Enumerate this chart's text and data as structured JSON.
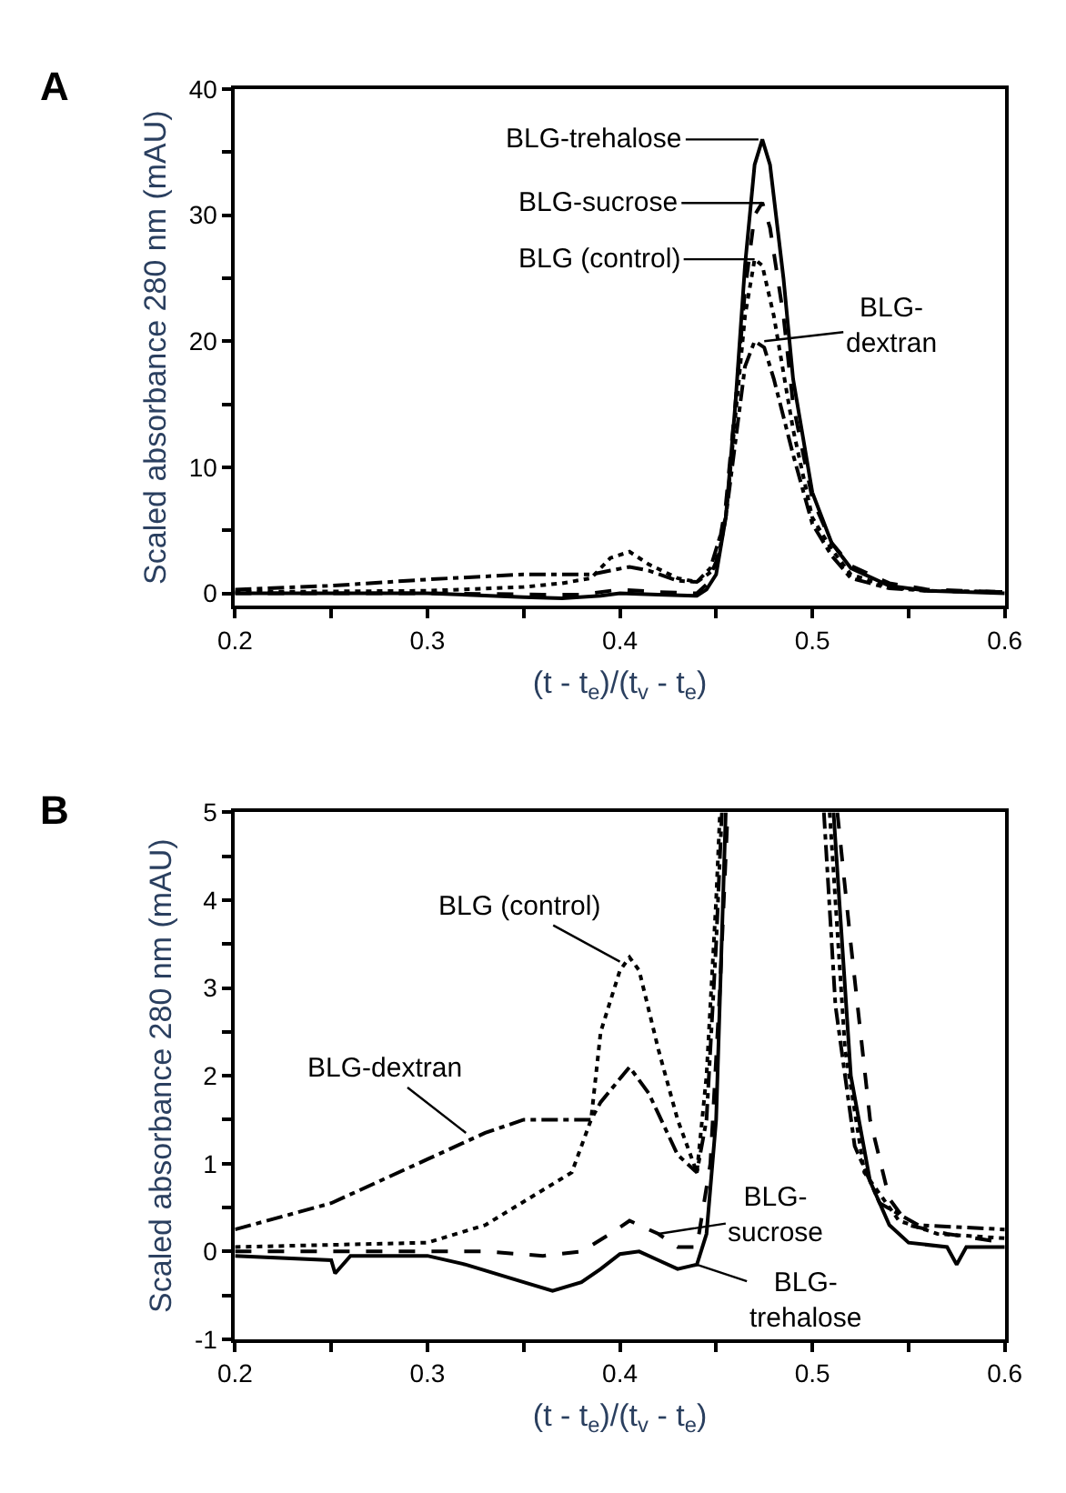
{
  "chart_data": [
    {
      "type": "line",
      "xlabel": "(t - t$_{e}$)/(t$_{v}$ - t$_{e}$)",
      "ylabel": "Scaled absorbance 280 nm (mAU)",
      "xlim": [
        0.2,
        0.6
      ],
      "xticks": [
        0.2,
        {
          "value": 0.25,
          "label": null
        },
        0.3,
        {
          "value": 0.35,
          "label": null
        },
        0.4,
        {
          "value": 0.45,
          "label": null
        },
        0.5,
        {
          "value": 0.55,
          "label": null
        },
        0.6
      ],
      "ylim": [
        -1,
        40
      ],
      "yticks": [
        0,
        {
          "value": 5,
          "label": null
        },
        10,
        {
          "value": 15,
          "label": null
        },
        20,
        {
          "value": 25,
          "label": null
        },
        30,
        {
          "value": 35,
          "label": null
        },
        40
      ],
      "series": [
        {
          "color": "#000000",
          "line_style": "solid",
          "x": [
            0.2,
            0.3,
            0.35,
            0.37,
            0.39,
            0.4,
            0.42,
            0.44,
            0.445,
            0.45,
            0.455,
            0.46,
            0.465,
            0.47,
            0.474,
            0.478,
            0.485,
            0.49,
            0.5,
            0.51,
            0.52,
            0.54,
            0.56,
            0.6
          ],
          "values": [
            0,
            0,
            -0.3,
            -0.4,
            -0.2,
            0,
            -0.1,
            -0.2,
            0.3,
            1.5,
            6,
            15,
            26,
            34,
            36,
            34,
            25,
            17,
            8,
            4,
            2,
            0.6,
            0.2,
            0
          ]
        },
        {
          "color": "#000000",
          "line_style": "dashed",
          "x": [
            0.2,
            0.3,
            0.36,
            0.38,
            0.4,
            0.42,
            0.44,
            0.445,
            0.45,
            0.455,
            0.46,
            0.465,
            0.47,
            0.474,
            0.478,
            0.485,
            0.49,
            0.5,
            0.51,
            0.52,
            0.54,
            0.56,
            0.6
          ],
          "values": [
            0,
            0,
            -0.1,
            -0.1,
            0.3,
            0.1,
            0,
            0.7,
            2.5,
            7,
            15,
            24,
            30,
            31,
            29,
            22,
            15,
            7.5,
            4,
            2.2,
            0.8,
            0.3,
            0.1
          ]
        },
        {
          "color": "#000000",
          "line_style": "dotted",
          "x": [
            0.2,
            0.3,
            0.35,
            0.37,
            0.385,
            0.395,
            0.405,
            0.415,
            0.43,
            0.44,
            0.45,
            0.455,
            0.46,
            0.465,
            0.47,
            0.474,
            0.48,
            0.49,
            0.5,
            0.51,
            0.52,
            0.54,
            0.56,
            0.6
          ],
          "values": [
            0.1,
            0.2,
            0.5,
            0.8,
            1.2,
            2.8,
            3.3,
            2.3,
            1.2,
            0.9,
            2,
            6,
            14,
            22,
            26.5,
            26,
            22,
            13,
            6,
            3.5,
            1.5,
            0.5,
            0.2,
            0.1
          ]
        },
        {
          "color": "#000000",
          "line_style": "dashdot",
          "x": [
            0.2,
            0.25,
            0.3,
            0.35,
            0.385,
            0.395,
            0.405,
            0.415,
            0.43,
            0.44,
            0.447,
            0.455,
            0.46,
            0.465,
            0.47,
            0.475,
            0.48,
            0.49,
            0.5,
            0.51,
            0.52,
            0.54,
            0.56,
            0.6
          ],
          "values": [
            0.3,
            0.6,
            1.1,
            1.5,
            1.5,
            1.8,
            2.1,
            1.8,
            1.0,
            0.9,
            2,
            6,
            12,
            18,
            20,
            19.5,
            17,
            11,
            5.5,
            3,
            1.2,
            0.4,
            0.2,
            0.1
          ]
        }
      ],
      "annotations": [
        "A",
        {
          "text": "BLG-trehalose",
          "x": 0.472,
          "y": 36
        },
        "BLG-sucrose",
        {
          "text": "BLG (control)",
          "x": 0.47,
          "y": 26.5
        },
        {
          "text": "BLG-\ndextran",
          "x": 0.475,
          "y": 20
        }
      ]
    },
    {
      "type": "line",
      "xlabel": "(t - t$_{e}$)/(t$_{v}$ - t$_{e}$)",
      "ylabel": "Scaled absorbance 280 nm (mAU)",
      "xlim": [
        0.2,
        0.6
      ],
      "xticks": [
        0.2,
        {
          "value": 0.25,
          "label": null
        },
        0.3,
        {
          "value": 0.35,
          "label": null
        },
        0.4,
        {
          "value": 0.45,
          "label": null
        },
        0.5,
        {
          "value": 0.55,
          "label": null
        },
        0.6
      ],
      "ylim": [
        -1,
        5
      ],
      "yticks": [
        -1,
        {
          "value": -0.5,
          "label": null
        },
        0,
        {
          "value": 0.5,
          "label": null
        },
        1,
        {
          "value": 1.5,
          "label": null
        },
        2,
        {
          "value": 2.5,
          "label": null
        },
        3,
        {
          "value": 3.5,
          "label": null
        },
        4,
        {
          "value": 4.5,
          "label": null
        },
        5
      ],
      "series": [
        {
          "color": "#000000",
          "line_style": "solid",
          "x": [
            0.2,
            0.25,
            0.252,
            0.26,
            0.3,
            0.32,
            0.35,
            0.365,
            0.38,
            0.39,
            0.4,
            0.41,
            0.42,
            0.43,
            0.44,
            0.445,
            0.45,
            0.455,
            0.48,
            0.511,
            0.52,
            0.53,
            0.54,
            0.55,
            0.57,
            0.575,
            0.58,
            0.6
          ],
          "values": [
            -0.05,
            -0.1,
            -0.25,
            -0.05,
            -0.05,
            -0.15,
            -0.35,
            -0.45,
            -0.35,
            -0.2,
            -0.03,
            0,
            -0.1,
            -0.2,
            -0.15,
            0.2,
            1.5,
            5,
            null,
            5,
            2,
            0.8,
            0.3,
            0.1,
            0.05,
            -0.15,
            0.05,
            0.05
          ]
        },
        {
          "color": "#000000",
          "line_style": "dashed",
          "x": [
            0.2,
            0.3,
            0.33,
            0.36,
            0.38,
            0.395,
            0.405,
            0.42,
            0.43,
            0.44,
            0.447,
            0.452,
            0.456,
            0.48,
            0.513,
            0.52,
            0.53,
            0.54,
            0.55,
            0.57,
            0.6
          ],
          "values": [
            0,
            0,
            0,
            -0.05,
            0,
            0.2,
            0.35,
            0.2,
            0.05,
            0.05,
            1,
            3,
            5,
            null,
            5,
            3.5,
            1.5,
            0.6,
            0.3,
            0.2,
            0.1
          ]
        },
        {
          "color": "#000000",
          "line_style": "dotted",
          "x": [
            0.2,
            0.3,
            0.33,
            0.36,
            0.375,
            0.385,
            0.39,
            0.4,
            0.405,
            0.41,
            0.42,
            0.43,
            0.44,
            0.445,
            0.45,
            0.452,
            0.48,
            0.509,
            0.517,
            0.527,
            0.545,
            0.565,
            0.6
          ],
          "values": [
            0.05,
            0.1,
            0.3,
            0.7,
            0.9,
            1.5,
            2.5,
            3.2,
            3.35,
            3.2,
            2.3,
            1.5,
            0.9,
            2,
            4,
            5,
            null,
            5,
            2.3,
            0.9,
            0.35,
            0.2,
            0.15
          ]
        },
        {
          "color": "#000000",
          "line_style": "dashdot",
          "x": [
            0.2,
            0.25,
            0.3,
            0.33,
            0.35,
            0.37,
            0.385,
            0.39,
            0.405,
            0.415,
            0.43,
            0.44,
            0.445,
            0.45,
            0.453,
            0.48,
            0.506,
            0.512,
            0.522,
            0.535,
            0.555,
            0.6
          ],
          "values": [
            0.25,
            0.55,
            1.05,
            1.35,
            1.5,
            1.5,
            1.5,
            1.7,
            2.1,
            1.8,
            1.1,
            0.9,
            1.5,
            3.5,
            5,
            null,
            5,
            2.8,
            1.2,
            0.55,
            0.3,
            0.25
          ]
        }
      ],
      "annotations": [
        "B",
        {
          "text": "BLG (control)",
          "x": 0.4,
          "y": 3.3
        },
        {
          "text": "BLG-dextran",
          "x": 0.32,
          "y": 1.35
        },
        {
          "text": "BLG-\nsucrose",
          "x": 0.42,
          "y": 0.2
        },
        {
          "text": "BLG-\ntrehalose",
          "x": 0.44,
          "y": -0.15
        }
      ]
    }
  ]
}
